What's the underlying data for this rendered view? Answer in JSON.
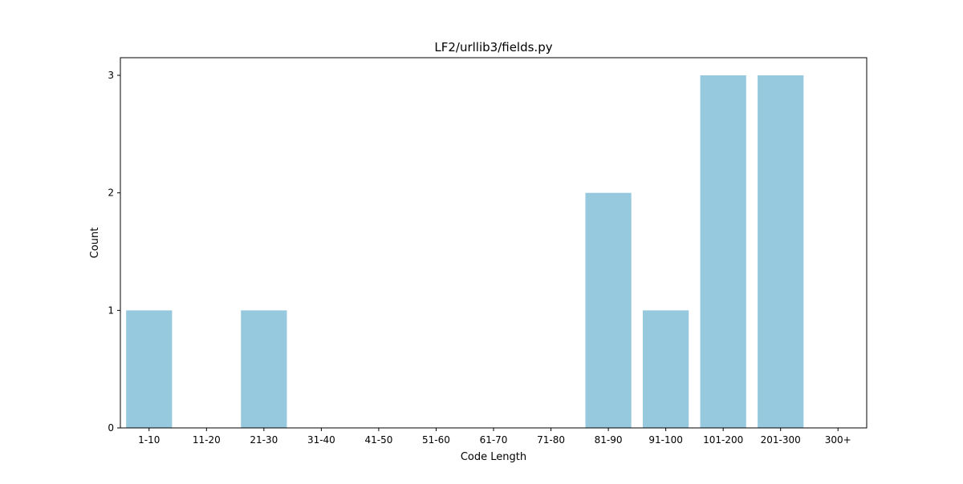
{
  "chart_data": {
    "type": "bar",
    "title": "LF2/urllib3/fields.py",
    "xlabel": "Code Length",
    "ylabel": "Count",
    "categories": [
      "1-10",
      "11-20",
      "21-30",
      "31-40",
      "41-50",
      "51-60",
      "61-70",
      "71-80",
      "81-90",
      "91-100",
      "101-200",
      "201-300",
      "300+"
    ],
    "values": [
      1,
      0,
      1,
      0,
      0,
      0,
      0,
      0,
      2,
      1,
      3,
      3,
      0
    ],
    "ylim": [
      0,
      3.15
    ],
    "yticks": [
      0,
      1,
      2,
      3
    ],
    "bar_color": "#96c9de",
    "grid": false,
    "legend": "none"
  }
}
